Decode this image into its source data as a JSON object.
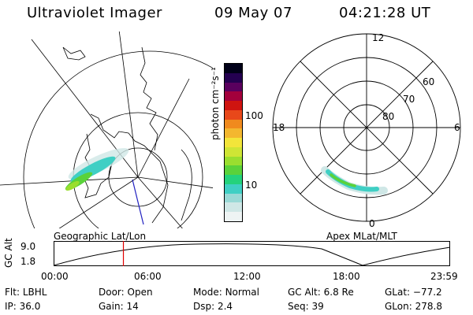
{
  "header": {
    "instrument": "Ultraviolet Imager",
    "date": "09 May 07",
    "time": "04:21:28 UT"
  },
  "geo_map": {
    "label": "Geographic Lat/Lon"
  },
  "colorbar": {
    "unit_label": "photon cm⁻²s⁻¹",
    "ticks": [
      "100",
      "10"
    ],
    "colors": [
      "#eef4f4",
      "#cfe7e6",
      "#99d9d6",
      "#3fcfc4",
      "#24d27c",
      "#5ad23a",
      "#9ade2f",
      "#cfe535",
      "#f3e53a",
      "#f3b72f",
      "#f08a1e",
      "#e8481a",
      "#cf1410",
      "#a3003c",
      "#5a005e",
      "#240050",
      "#000018"
    ]
  },
  "polar_map": {
    "label": "Apex MLat/MLT",
    "mlt_labels": [
      "12",
      "18",
      "6",
      "0"
    ],
    "lat_labels": [
      "60",
      "70",
      "80"
    ]
  },
  "altitude_plot": {
    "axis_label": "GC Alt",
    "y_ticks": [
      "9.0",
      "1.8"
    ],
    "x_ticks": [
      "00:00",
      "06:00",
      "12:00",
      "18:00",
      "23:59"
    ],
    "current_time_fraction": 0.176
  },
  "status": {
    "row1": [
      {
        "label": "Flt:",
        "value": "LBHL"
      },
      {
        "label": "Door:",
        "value": "Open"
      },
      {
        "label": "Mode:",
        "value": "Normal"
      },
      {
        "label": "GC Alt:",
        "value": "6.8 Re"
      },
      {
        "label": "GLat:",
        "value": "−77.2"
      }
    ],
    "row2": [
      {
        "label": "IP:",
        "value": "36.0"
      },
      {
        "label": "Gain:",
        "value": "14"
      },
      {
        "label": "Dsp:",
        "value": "2.4"
      },
      {
        "label": "Seq:",
        "value": "39"
      },
      {
        "label": "GLon:",
        "value": "278.8"
      }
    ]
  }
}
